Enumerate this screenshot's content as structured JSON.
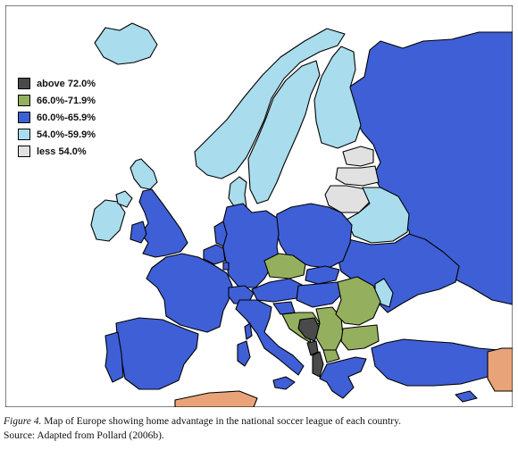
{
  "colors": {
    "sea": "#ffffff",
    "border": "#000000",
    "non_league": "#e8a478"
  },
  "legend": {
    "items": [
      {
        "label": "above 72.0%",
        "color": "#4a4a4a"
      },
      {
        "label": "66.0%-71.9%",
        "color": "#94b05e"
      },
      {
        "label": "60.0%-65.9%",
        "color": "#3f5fd6"
      },
      {
        "label": "54.0%-59.9%",
        "color": "#a9dcec"
      },
      {
        "label": "less 54.0%",
        "color": "#e1e1e1"
      }
    ]
  },
  "caption": {
    "figure_label": "Figure 4.",
    "text": " Map of Europe showing home advantage in the national soccer league of each country.",
    "source": "Source: Adapted from Pollard (2006b)."
  }
}
